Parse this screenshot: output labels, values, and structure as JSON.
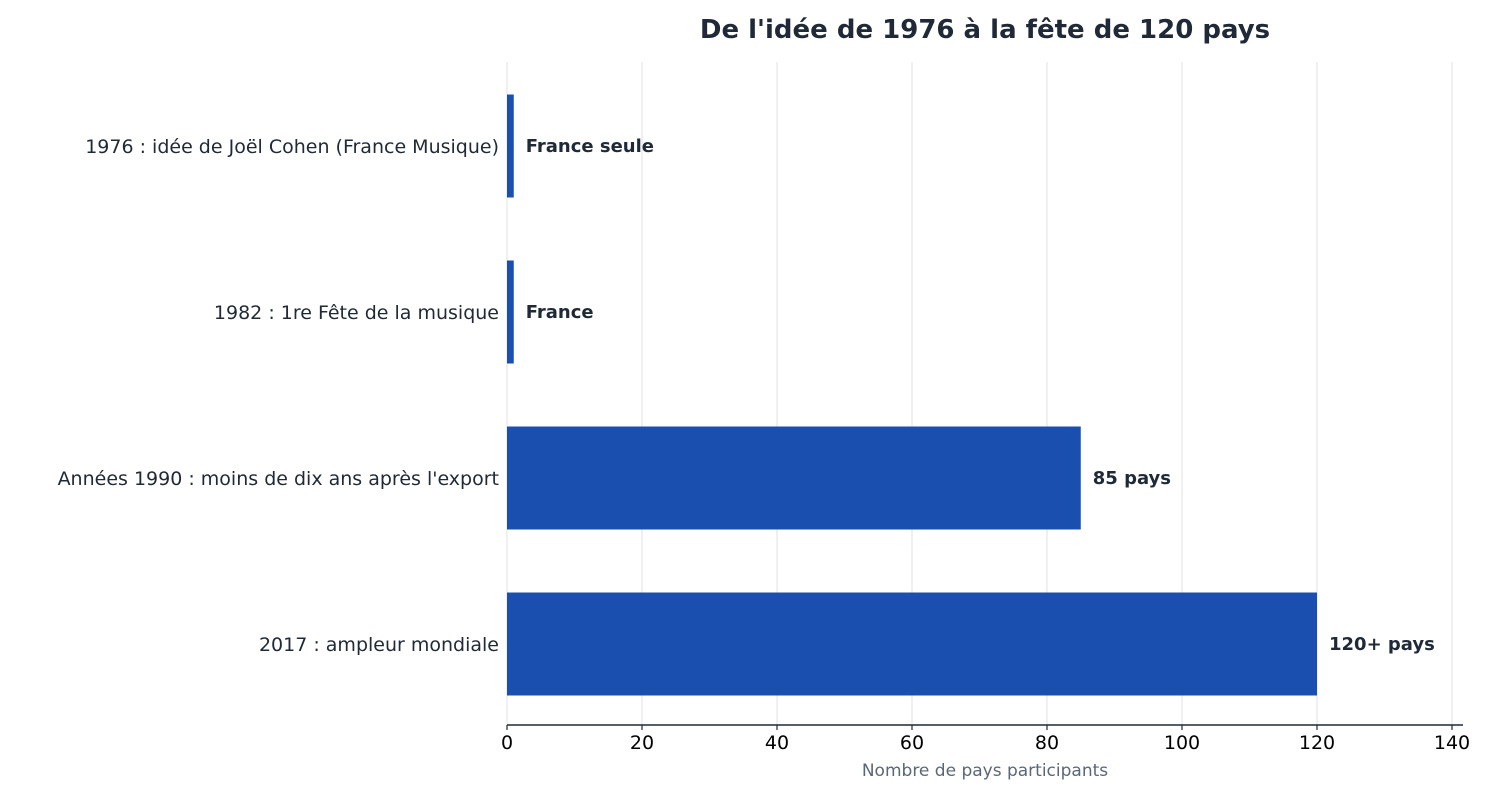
{
  "chart_data": {
    "type": "bar",
    "orientation": "horizontal",
    "title": "De l'idée de 1976 à la fête de 120 pays",
    "xlabel": "Nombre de pays participants",
    "ylabel": "",
    "xlim": [
      0,
      140
    ],
    "xticks": [
      0,
      20,
      40,
      60,
      80,
      100,
      120,
      140
    ],
    "grid": "vertical",
    "categories": [
      "1976 : idée de Joël Cohen (France Musique)",
      "1982 : 1re Fête de la musique",
      "Années 1990 : moins de dix ans après l'export",
      "2017 : ampleur mondiale"
    ],
    "values": [
      1,
      1,
      85,
      120
    ],
    "data_labels": [
      "France seule",
      "France",
      "85 pays",
      "120+ pays"
    ],
    "colors": {
      "bar": "#1a4fb0",
      "grid": "#e5e7eb",
      "axis": "#1f2933",
      "title": "#1f2937",
      "label": "#1f2937",
      "xlabel": "#5a6778"
    }
  }
}
